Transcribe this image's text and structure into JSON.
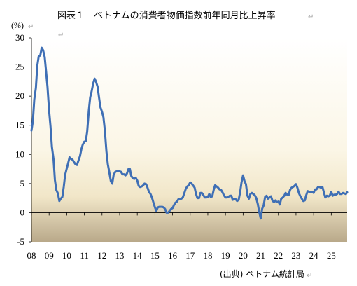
{
  "chart_data": {
    "type": "line",
    "title": "図表１　ベトナムの消費者物価指数前年同月比上昇率",
    "ylabel": "(%)",
    "source": "(出典) ベトナム統計局",
    "ylim": [
      -5,
      30
    ],
    "yticks": [
      30,
      25,
      20,
      15,
      10,
      5,
      0,
      -5
    ],
    "xlim": [
      2008.0,
      2025.9
    ],
    "xtick_labels": [
      "08",
      "09",
      "10",
      "11",
      "12",
      "13",
      "14",
      "15",
      "16",
      "17",
      "18",
      "19",
      "20",
      "21",
      "22",
      "23",
      "24",
      "25"
    ],
    "grid": false,
    "series": [
      {
        "color": "#3f6fb5",
        "points": [
          [
            2008.0,
            14.1
          ],
          [
            2008.08,
            15.7
          ],
          [
            2008.16,
            19.4
          ],
          [
            2008.25,
            21.4
          ],
          [
            2008.33,
            25.2
          ],
          [
            2008.41,
            26.8
          ],
          [
            2008.5,
            27.0
          ],
          [
            2008.58,
            28.3
          ],
          [
            2008.66,
            27.9
          ],
          [
            2008.75,
            26.7
          ],
          [
            2008.83,
            24.2
          ],
          [
            2008.91,
            21.6
          ],
          [
            2009.0,
            17.5
          ],
          [
            2009.08,
            14.8
          ],
          [
            2009.16,
            11.3
          ],
          [
            2009.25,
            9.2
          ],
          [
            2009.33,
            5.6
          ],
          [
            2009.41,
            3.9
          ],
          [
            2009.5,
            3.3
          ],
          [
            2009.58,
            2.0
          ],
          [
            2009.66,
            2.4
          ],
          [
            2009.75,
            2.7
          ],
          [
            2009.83,
            4.4
          ],
          [
            2009.91,
            6.5
          ],
          [
            2010.0,
            7.6
          ],
          [
            2010.08,
            8.5
          ],
          [
            2010.16,
            9.5
          ],
          [
            2010.25,
            9.2
          ],
          [
            2010.33,
            9.1
          ],
          [
            2010.41,
            8.7
          ],
          [
            2010.5,
            8.3
          ],
          [
            2010.58,
            8.2
          ],
          [
            2010.66,
            8.9
          ],
          [
            2010.75,
            9.7
          ],
          [
            2010.83,
            10.9
          ],
          [
            2010.91,
            11.7
          ],
          [
            2011.0,
            12.2
          ],
          [
            2011.08,
            12.3
          ],
          [
            2011.16,
            13.9
          ],
          [
            2011.25,
            17.5
          ],
          [
            2011.33,
            19.8
          ],
          [
            2011.41,
            20.8
          ],
          [
            2011.5,
            22.2
          ],
          [
            2011.58,
            23.0
          ],
          [
            2011.66,
            22.5
          ],
          [
            2011.75,
            21.6
          ],
          [
            2011.83,
            19.8
          ],
          [
            2011.91,
            18.1
          ],
          [
            2012.0,
            17.3
          ],
          [
            2012.08,
            16.4
          ],
          [
            2012.16,
            14.2
          ],
          [
            2012.25,
            10.5
          ],
          [
            2012.33,
            8.3
          ],
          [
            2012.41,
            7.0
          ],
          [
            2012.5,
            5.4
          ],
          [
            2012.58,
            5.0
          ],
          [
            2012.66,
            6.5
          ],
          [
            2012.75,
            7.0
          ],
          [
            2012.83,
            7.1
          ],
          [
            2012.91,
            7.1
          ],
          [
            2013.0,
            7.1
          ],
          [
            2013.08,
            7.0
          ],
          [
            2013.16,
            6.6
          ],
          [
            2013.25,
            6.6
          ],
          [
            2013.33,
            6.4
          ],
          [
            2013.41,
            6.7
          ],
          [
            2013.5,
            7.5
          ],
          [
            2013.58,
            7.5
          ],
          [
            2013.66,
            6.3
          ],
          [
            2013.75,
            5.9
          ],
          [
            2013.83,
            5.8
          ],
          [
            2013.91,
            6.0
          ],
          [
            2014.0,
            5.5
          ],
          [
            2014.08,
            4.6
          ],
          [
            2014.16,
            4.4
          ],
          [
            2014.25,
            4.5
          ],
          [
            2014.33,
            4.7
          ],
          [
            2014.41,
            5.0
          ],
          [
            2014.5,
            4.9
          ],
          [
            2014.58,
            4.3
          ],
          [
            2014.66,
            3.6
          ],
          [
            2014.75,
            3.2
          ],
          [
            2014.83,
            2.6
          ],
          [
            2014.91,
            1.8
          ],
          [
            2015.0,
            0.9
          ],
          [
            2015.08,
            0.3
          ],
          [
            2015.16,
            0.9
          ],
          [
            2015.25,
            1.0
          ],
          [
            2015.33,
            1.0
          ],
          [
            2015.41,
            1.0
          ],
          [
            2015.5,
            0.9
          ],
          [
            2015.58,
            0.6
          ],
          [
            2015.66,
            0.0
          ],
          [
            2015.75,
            0.0
          ],
          [
            2015.83,
            0.3
          ],
          [
            2015.91,
            0.6
          ],
          [
            2016.0,
            0.8
          ],
          [
            2016.08,
            1.3
          ],
          [
            2016.16,
            1.7
          ],
          [
            2016.25,
            1.9
          ],
          [
            2016.33,
            2.3
          ],
          [
            2016.41,
            2.4
          ],
          [
            2016.5,
            2.4
          ],
          [
            2016.58,
            2.6
          ],
          [
            2016.66,
            3.3
          ],
          [
            2016.75,
            4.1
          ],
          [
            2016.83,
            4.5
          ],
          [
            2016.91,
            4.7
          ],
          [
            2017.0,
            5.2
          ],
          [
            2017.08,
            5.0
          ],
          [
            2017.16,
            4.7
          ],
          [
            2017.25,
            4.3
          ],
          [
            2017.33,
            3.2
          ],
          [
            2017.41,
            2.5
          ],
          [
            2017.5,
            2.5
          ],
          [
            2017.58,
            3.4
          ],
          [
            2017.66,
            3.4
          ],
          [
            2017.75,
            3.0
          ],
          [
            2017.83,
            2.6
          ],
          [
            2017.91,
            2.6
          ],
          [
            2018.0,
            2.7
          ],
          [
            2018.08,
            3.2
          ],
          [
            2018.16,
            2.7
          ],
          [
            2018.25,
            2.8
          ],
          [
            2018.33,
            3.9
          ],
          [
            2018.41,
            4.7
          ],
          [
            2018.5,
            4.5
          ],
          [
            2018.58,
            4.3
          ],
          [
            2018.66,
            4.0
          ],
          [
            2018.75,
            3.9
          ],
          [
            2018.83,
            3.5
          ],
          [
            2018.91,
            3.0
          ],
          [
            2019.0,
            2.6
          ],
          [
            2019.08,
            2.6
          ],
          [
            2019.16,
            2.7
          ],
          [
            2019.25,
            2.9
          ],
          [
            2019.33,
            2.9
          ],
          [
            2019.41,
            2.2
          ],
          [
            2019.5,
            2.4
          ],
          [
            2019.58,
            2.3
          ],
          [
            2019.66,
            2.0
          ],
          [
            2019.75,
            2.2
          ],
          [
            2019.83,
            3.5
          ],
          [
            2019.91,
            5.2
          ],
          [
            2020.0,
            6.4
          ],
          [
            2020.08,
            5.4
          ],
          [
            2020.16,
            4.9
          ],
          [
            2020.25,
            2.9
          ],
          [
            2020.33,
            2.4
          ],
          [
            2020.41,
            3.2
          ],
          [
            2020.5,
            3.4
          ],
          [
            2020.58,
            3.2
          ],
          [
            2020.66,
            3.0
          ],
          [
            2020.75,
            2.5
          ],
          [
            2020.83,
            1.5
          ],
          [
            2020.91,
            0.2
          ],
          [
            2021.0,
            -1.0
          ],
          [
            2021.08,
            0.7
          ],
          [
            2021.16,
            1.2
          ],
          [
            2021.25,
            2.7
          ],
          [
            2021.33,
            2.9
          ],
          [
            2021.41,
            2.4
          ],
          [
            2021.5,
            2.6
          ],
          [
            2021.58,
            2.8
          ],
          [
            2021.66,
            2.1
          ],
          [
            2021.75,
            1.8
          ],
          [
            2021.83,
            2.1
          ],
          [
            2021.91,
            1.8
          ],
          [
            2022.0,
            1.9
          ],
          [
            2022.08,
            1.4
          ],
          [
            2022.16,
            2.4
          ],
          [
            2022.25,
            2.6
          ],
          [
            2022.33,
            2.9
          ],
          [
            2022.41,
            3.4
          ],
          [
            2022.5,
            3.1
          ],
          [
            2022.58,
            3.0
          ],
          [
            2022.66,
            3.9
          ],
          [
            2022.75,
            4.3
          ],
          [
            2022.83,
            4.4
          ],
          [
            2022.91,
            4.6
          ],
          [
            2023.0,
            4.9
          ],
          [
            2023.08,
            4.3
          ],
          [
            2023.16,
            3.4
          ],
          [
            2023.25,
            2.8
          ],
          [
            2023.33,
            2.4
          ],
          [
            2023.41,
            2.0
          ],
          [
            2023.5,
            2.1
          ],
          [
            2023.58,
            3.0
          ],
          [
            2023.66,
            3.7
          ],
          [
            2023.75,
            3.6
          ],
          [
            2023.83,
            3.5
          ],
          [
            2023.91,
            3.6
          ],
          [
            2024.0,
            3.4
          ],
          [
            2024.08,
            4.0
          ],
          [
            2024.16,
            4.0
          ],
          [
            2024.25,
            4.4
          ],
          [
            2024.33,
            4.4
          ],
          [
            2024.41,
            4.3
          ],
          [
            2024.5,
            4.4
          ],
          [
            2024.58,
            3.5
          ],
          [
            2024.66,
            2.6
          ],
          [
            2024.75,
            2.9
          ],
          [
            2024.83,
            2.8
          ],
          [
            2024.91,
            2.9
          ],
          [
            2025.0,
            3.6
          ],
          [
            2025.08,
            2.9
          ],
          [
            2025.16,
            3.1
          ],
          [
            2025.25,
            3.1
          ],
          [
            2025.33,
            3.2
          ],
          [
            2025.41,
            3.6
          ],
          [
            2025.5,
            3.2
          ],
          [
            2025.58,
            3.2
          ],
          [
            2025.66,
            3.4
          ],
          [
            2025.75,
            3.3
          ],
          [
            2025.83,
            3.2
          ],
          [
            2025.9,
            3.5
          ]
        ]
      }
    ]
  }
}
